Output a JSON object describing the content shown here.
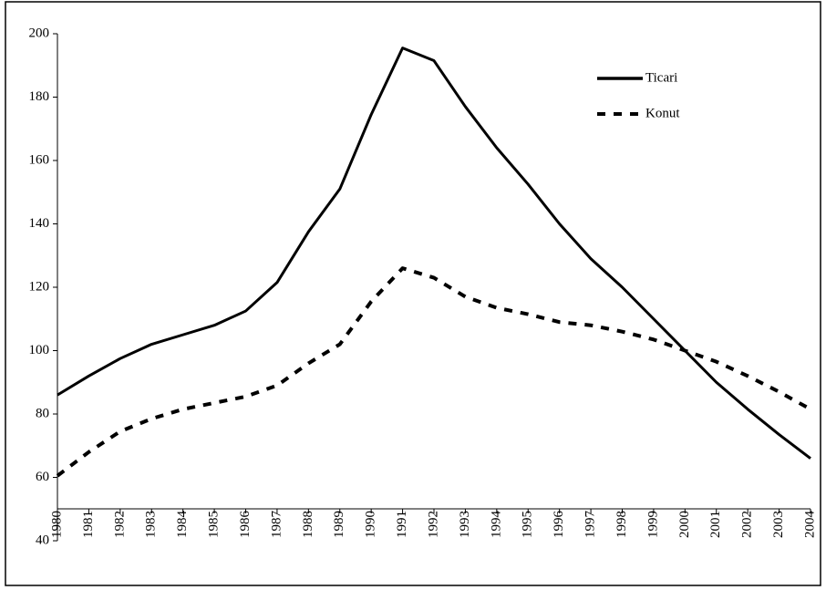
{
  "chart_data": {
    "type": "line",
    "categories": [
      "1980",
      "1981",
      "1982",
      "1983",
      "1984",
      "1985",
      "1986",
      "1987",
      "1988",
      "1989",
      "1990",
      "1991",
      "1992",
      "1993",
      "1994",
      "1995",
      "1996",
      "1997",
      "1998",
      "1999",
      "2000",
      "2001",
      "2002",
      "2003",
      "2004"
    ],
    "series": [
      {
        "name": "Ticari",
        "color": "#000000",
        "line_style": "solid",
        "values": [
          86,
          92,
          97.5,
          102,
          105,
          108,
          112.5,
          121.5,
          137.5,
          151,
          174.5,
          195.5,
          191.5,
          177,
          164,
          152.5,
          140,
          129,
          120,
          110,
          100,
          90,
          81.5,
          73.5,
          66
        ]
      },
      {
        "name": "Konut",
        "color": "#000000",
        "line_style": "dashed",
        "values": [
          60.5,
          68,
          74.5,
          78.5,
          81.5,
          83.5,
          85.5,
          89,
          96,
          102,
          115.5,
          126,
          123,
          117,
          113.5,
          111.5,
          109,
          108,
          106,
          103.5,
          100,
          96.5,
          92,
          87,
          81.5
        ]
      }
    ],
    "ylim": [
      40,
      200
    ],
    "yticks": [
      40,
      60,
      80,
      100,
      120,
      140,
      160,
      180,
      200
    ],
    "legend": "top-right",
    "grid": false
  }
}
